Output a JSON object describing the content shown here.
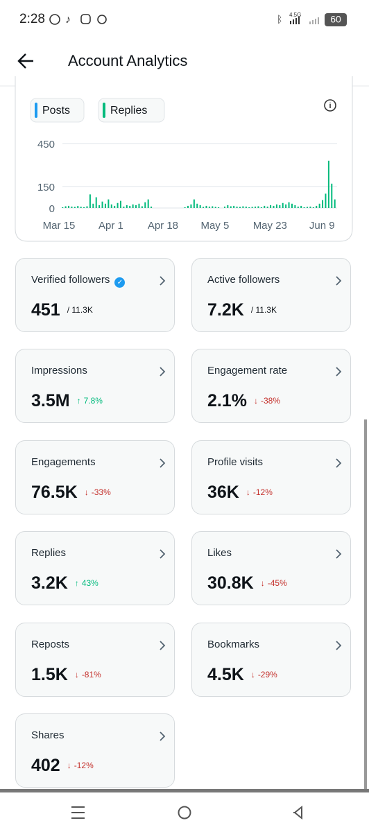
{
  "status_bar": {
    "time": "2:28",
    "network": "4.5G",
    "battery": "60"
  },
  "header": {
    "title": "Account Analytics"
  },
  "chart_data": {
    "type": "bar",
    "categories": [
      "Mar 15",
      null,
      null,
      null,
      null,
      null,
      null,
      null,
      null,
      null,
      null,
      null,
      null,
      null,
      null,
      null,
      null,
      "Apr 1",
      null,
      null,
      null,
      null,
      null,
      null,
      null,
      null,
      null,
      null,
      null,
      null,
      null,
      null,
      null,
      null,
      "Apr 18",
      null,
      null,
      null,
      null,
      null,
      null,
      null,
      null,
      null,
      null,
      null,
      null,
      null,
      null,
      null,
      null,
      "May 5",
      null,
      null,
      null,
      null,
      null,
      null,
      null,
      null,
      null,
      null,
      null,
      null,
      null,
      null,
      null,
      null,
      null,
      "May 23",
      null,
      null,
      null,
      null,
      null,
      null,
      null,
      null,
      null,
      null,
      null,
      null,
      null,
      null,
      null,
      null,
      "Jun 9",
      null,
      null,
      null,
      null
    ],
    "series": [
      {
        "name": "Posts",
        "color": "#1d9bf0",
        "values": [
          0,
          0,
          0,
          0,
          0,
          0,
          0,
          0,
          0,
          0,
          0,
          0,
          0,
          0,
          0,
          0,
          0,
          0,
          0,
          0,
          0,
          0,
          0,
          0,
          0,
          0,
          0,
          0,
          0,
          0,
          0,
          0,
          0,
          0,
          0,
          0,
          0,
          0,
          0,
          0,
          0,
          0,
          0,
          0,
          0,
          0,
          0,
          0,
          0,
          0,
          0,
          0,
          0,
          0,
          0,
          0,
          0,
          0,
          0,
          0,
          0,
          0,
          0,
          0,
          0,
          0,
          0,
          0,
          0,
          0,
          0,
          0,
          0,
          0,
          0,
          0,
          0,
          0,
          0,
          0,
          0,
          0,
          0,
          0,
          0,
          0,
          0,
          0,
          0,
          0,
          0
        ]
      },
      {
        "name": "Replies",
        "color": "#00ba7c",
        "values": [
          0,
          5,
          12,
          15,
          10,
          8,
          14,
          9,
          6,
          12,
          95,
          30,
          75,
          20,
          45,
          30,
          60,
          25,
          15,
          35,
          50,
          10,
          20,
          15,
          25,
          20,
          30,
          12,
          40,
          60,
          10,
          0,
          0,
          0,
          0,
          0,
          0,
          0,
          0,
          0,
          0,
          5,
          15,
          25,
          60,
          30,
          20,
          8,
          15,
          10,
          12,
          8,
          5,
          0,
          10,
          20,
          12,
          15,
          10,
          8,
          12,
          10,
          5,
          8,
          10,
          12,
          5,
          15,
          10,
          20,
          15,
          25,
          20,
          35,
          25,
          40,
          30,
          20,
          10,
          15,
          5,
          8,
          10,
          5,
          15,
          30,
          55,
          100,
          330,
          170,
          60
        ]
      }
    ],
    "ylim": [
      0,
      450
    ],
    "yticks": [
      0,
      150,
      450
    ],
    "grid": true
  },
  "cards": [
    {
      "label": "Verified followers",
      "value": "451",
      "total": "/ 11.3K",
      "verified": true
    },
    {
      "label": "Active followers",
      "value": "7.2K",
      "total": "/ 11.3K"
    },
    {
      "label": "Impressions",
      "value": "3.5M",
      "change": "7.8%",
      "direction": "up"
    },
    {
      "label": "Engagement rate",
      "value": "2.1%",
      "change": "-38%",
      "direction": "down"
    },
    {
      "label": "Engagements",
      "value": "76.5K",
      "change": "-33%",
      "direction": "down"
    },
    {
      "label": "Profile visits",
      "value": "36K",
      "change": "-12%",
      "direction": "down"
    },
    {
      "label": "Replies",
      "value": "3.2K",
      "change": "43%",
      "direction": "up"
    },
    {
      "label": "Likes",
      "value": "30.8K",
      "change": "-45%",
      "direction": "down"
    },
    {
      "label": "Reposts",
      "value": "1.5K",
      "change": "-81%",
      "direction": "down"
    },
    {
      "label": "Bookmarks",
      "value": "4.5K",
      "change": "-29%",
      "direction": "down"
    },
    {
      "label": "Shares",
      "value": "402",
      "change": "-12%",
      "direction": "down"
    }
  ]
}
